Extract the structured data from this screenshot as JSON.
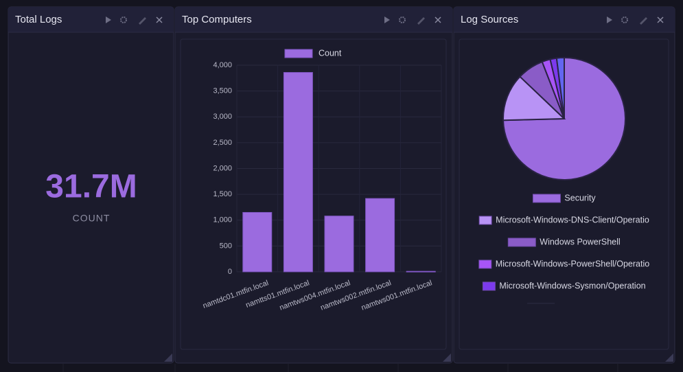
{
  "panels": [
    {
      "title": "Total Logs"
    },
    {
      "title": "Top Computers"
    },
    {
      "title": "Log Sources"
    }
  ],
  "stat": {
    "value": "31.7M",
    "label": "COUNT"
  },
  "chart_data": [
    {
      "type": "bar",
      "categories": [
        "namtdc01.mtfin.local",
        "namtts01.mtfin.local",
        "namtws004.mtfin.local",
        "namtws002.mtfin.local",
        "namtws001.mtfin.local"
      ],
      "series": [
        {
          "name": "Count",
          "color": "#9b6bdf",
          "values": [
            1150,
            3860,
            1080,
            1420,
            10
          ]
        }
      ],
      "ylim": [
        0,
        4000
      ],
      "yticks": [
        0,
        500,
        {
          "value": 1000,
          "label": "1,000"
        },
        {
          "value": 1500,
          "label": "1,500"
        },
        {
          "value": 2000,
          "label": "2,000"
        },
        {
          "value": 2500,
          "label": "2,500"
        },
        {
          "value": 3000,
          "label": "3,000"
        },
        {
          "value": 3500,
          "label": "3,500"
        },
        {
          "value": 4000,
          "label": "4,000"
        }
      ],
      "grid": true
    },
    {
      "type": "pie",
      "categories": [
        "Security",
        "Microsoft-Windows-DNS-Client/Operatio",
        "Windows PowerShell",
        "Microsoft-Windows-PowerShell/Operatio",
        "Microsoft-Windows-Sysmon/Operation",
        null
      ],
      "values": [
        74.6,
        12.5,
        7,
        2.2,
        1.7,
        2
      ],
      "colors": [
        "#9b6bdf",
        "#b893f5",
        "#8a5cc7",
        "#a855f7",
        "#7c3aed",
        "#6366f1"
      ]
    }
  ]
}
